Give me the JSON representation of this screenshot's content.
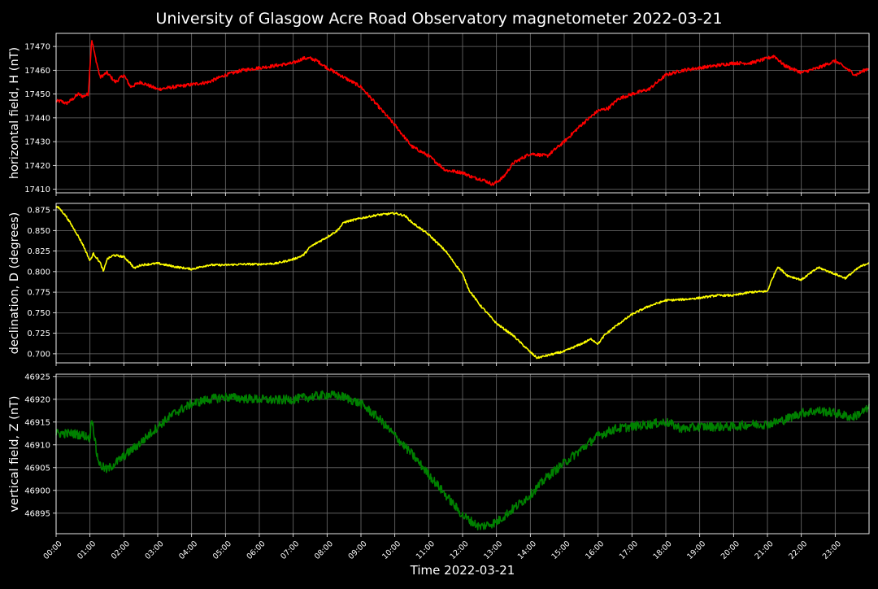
{
  "title": "University of Glasgow Acre Road Observatory magnetometer 2022-03-21",
  "xlabel": "Time 2022-03-21",
  "colors": {
    "background": "#000000",
    "grid": "#6e6e6e",
    "axis": "#ffffff"
  },
  "chart_data": [
    {
      "type": "line",
      "ylabel": "horizontal field, H (nT)",
      "color": "#ff0000",
      "ylim": [
        17408.5,
        17475.5
      ],
      "yticks": [
        17410,
        17420,
        17430,
        17440,
        17450,
        17460,
        17470
      ],
      "xlim": [
        0,
        24
      ],
      "grid": true,
      "x": [
        0.0,
        0.15,
        0.3,
        0.5,
        0.65,
        0.8,
        0.95,
        1.05,
        1.15,
        1.3,
        1.5,
        1.75,
        2.0,
        2.2,
        2.5,
        3.0,
        3.5,
        4.0,
        4.5,
        5.0,
        5.5,
        6.0,
        6.5,
        7.0,
        7.3,
        7.5,
        7.7,
        8.0,
        8.5,
        9.0,
        9.5,
        10.0,
        10.5,
        11.0,
        11.5,
        12.0,
        12.3,
        12.6,
        12.9,
        13.2,
        13.5,
        14.0,
        14.5,
        15.0,
        15.5,
        16.0,
        16.3,
        16.6,
        17.0,
        17.5,
        18.0,
        18.5,
        19.0,
        19.5,
        20.0,
        20.5,
        21.0,
        21.2,
        21.5,
        22.0,
        22.5,
        23.0,
        23.3,
        23.6,
        24.0
      ],
      "y": [
        17447,
        17447,
        17446,
        17448,
        17450,
        17449,
        17450,
        17473,
        17466,
        17457,
        17459,
        17455,
        17458,
        17453,
        17455,
        17452,
        17453,
        17454,
        17455,
        17458,
        17460,
        17461,
        17462,
        17463,
        17465,
        17465,
        17464,
        17461,
        17457,
        17453,
        17445,
        17437,
        17428,
        17424,
        17418,
        17417,
        17415,
        17414,
        17412,
        17415,
        17421,
        17425,
        17424,
        17430,
        17437,
        17443,
        17444,
        17448,
        17450,
        17452,
        17458,
        17460,
        17461,
        17462,
        17463,
        17463,
        17465,
        17466,
        17462,
        17459,
        17461,
        17464,
        17461,
        17458,
        17461
      ],
      "noise": 0.7
    },
    {
      "type": "line",
      "ylabel": "declination, D (degrees)",
      "color": "#ffff00",
      "ylim": [
        0.689,
        0.883
      ],
      "yticks": [
        0.7,
        0.725,
        0.75,
        0.775,
        0.8,
        0.825,
        0.85,
        0.875
      ],
      "ytick_labels": [
        "0.700",
        "0.725",
        "0.750",
        "0.775",
        "0.800",
        "0.825",
        "0.850",
        "0.875"
      ],
      "xlim": [
        0,
        24
      ],
      "grid": true,
      "x": [
        0.0,
        0.1,
        0.3,
        0.6,
        0.8,
        1.0,
        1.1,
        1.3,
        1.4,
        1.5,
        1.7,
        2.0,
        2.2,
        2.3,
        2.5,
        3.0,
        3.5,
        4.0,
        4.5,
        5.0,
        5.5,
        6.0,
        6.5,
        7.0,
        7.3,
        7.5,
        7.7,
        8.0,
        8.3,
        8.5,
        9.0,
        9.5,
        10.0,
        10.3,
        10.5,
        11.0,
        11.5,
        12.0,
        12.2,
        12.5,
        13.0,
        13.5,
        14.0,
        14.2,
        14.5,
        15.0,
        15.5,
        15.8,
        16.0,
        16.2,
        16.5,
        17.0,
        17.5,
        18.0,
        18.5,
        19.0,
        19.5,
        20.0,
        20.5,
        21.0,
        21.1,
        21.3,
        21.6,
        22.0,
        22.5,
        23.0,
        23.3,
        23.7,
        24.0
      ],
      "y": [
        0.879,
        0.877,
        0.867,
        0.847,
        0.832,
        0.813,
        0.822,
        0.811,
        0.8,
        0.815,
        0.82,
        0.818,
        0.81,
        0.804,
        0.808,
        0.81,
        0.806,
        0.803,
        0.808,
        0.808,
        0.809,
        0.809,
        0.81,
        0.815,
        0.82,
        0.83,
        0.835,
        0.842,
        0.85,
        0.86,
        0.865,
        0.869,
        0.871,
        0.868,
        0.86,
        0.845,
        0.825,
        0.797,
        0.777,
        0.76,
        0.737,
        0.722,
        0.702,
        0.695,
        0.698,
        0.703,
        0.712,
        0.718,
        0.712,
        0.723,
        0.733,
        0.748,
        0.758,
        0.765,
        0.766,
        0.768,
        0.771,
        0.771,
        0.775,
        0.776,
        0.787,
        0.806,
        0.795,
        0.79,
        0.805,
        0.797,
        0.792,
        0.805,
        0.811
      ],
      "noise": 0.0012
    },
    {
      "type": "line",
      "ylabel": "vertical field, Z (nT)",
      "color": "#008000",
      "ylim": [
        46890.5,
        46925.5
      ],
      "yticks": [
        46895,
        46900,
        46905,
        46910,
        46915,
        46920,
        46925
      ],
      "xlim": [
        0,
        24
      ],
      "grid": true,
      "x": [
        0.0,
        0.5,
        0.85,
        1.0,
        1.05,
        1.2,
        1.3,
        1.5,
        1.75,
        2.0,
        2.5,
        3.0,
        3.5,
        4.0,
        4.5,
        5.0,
        5.5,
        6.0,
        6.5,
        7.0,
        7.5,
        8.0,
        8.5,
        9.0,
        9.5,
        10.0,
        10.5,
        11.0,
        11.5,
        12.0,
        12.5,
        13.0,
        13.5,
        14.0,
        14.5,
        15.0,
        15.5,
        16.0,
        16.5,
        17.0,
        17.5,
        18.0,
        18.5,
        19.0,
        19.5,
        20.0,
        20.5,
        21.0,
        21.5,
        22.0,
        22.5,
        23.0,
        23.5,
        24.0
      ],
      "y": [
        46912.5,
        46912.5,
        46912.0,
        46911.5,
        46916.5,
        46908,
        46905.5,
        46904.5,
        46906,
        46907.5,
        46910.5,
        46914,
        46917,
        46919,
        46920,
        46920.5,
        46920.2,
        46920,
        46919.8,
        46920,
        46920.5,
        46921,
        46920.5,
        46919,
        46916,
        46912,
        46908,
        46903.5,
        46899,
        46894.5,
        46892,
        46893,
        46896,
        46899,
        46903,
        46906,
        46909,
        46912,
        46913.5,
        46914,
        46914.5,
        46915,
        46913.5,
        46914,
        46914,
        46914,
        46914.5,
        46914.5,
        46915.5,
        46917,
        46917.5,
        46917,
        46916,
        46918
      ],
      "noise": 1.0
    }
  ],
  "x_tick_labels": [
    "00:00",
    "01:00",
    "02:00",
    "03:00",
    "04:00",
    "05:00",
    "06:00",
    "07:00",
    "08:00",
    "09:00",
    "10:00",
    "11:00",
    "12:00",
    "13:00",
    "14:00",
    "15:00",
    "16:00",
    "17:00",
    "18:00",
    "19:00",
    "20:00",
    "21:00",
    "22:00",
    "23:00"
  ]
}
